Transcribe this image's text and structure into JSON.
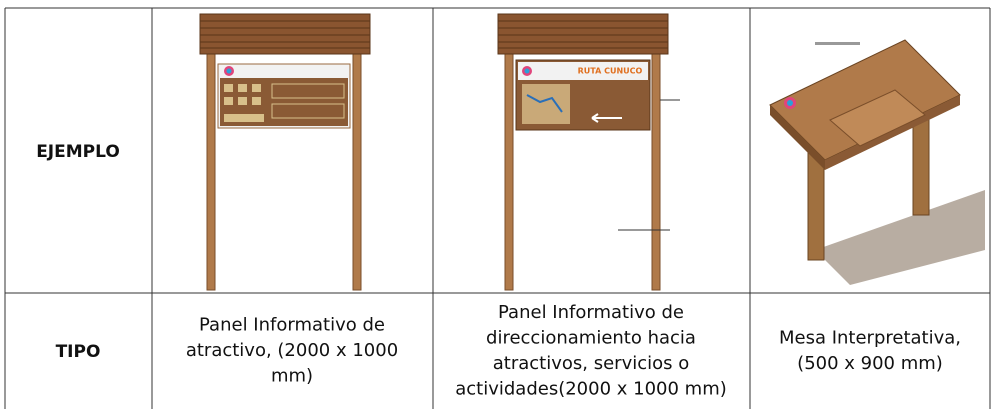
{
  "table": {
    "rows": [
      {
        "header": "EJEMPLO",
        "cells": [
          {
            "sign_title": null
          },
          {
            "sign_title": "RUTA CUNUCO"
          },
          {
            "sign_title": null
          }
        ]
      },
      {
        "header": "TIPO",
        "cells": [
          {
            "lines": [
              "Panel Informativo de",
              "atractivo, (2000 x 1000",
              "mm)"
            ]
          },
          {
            "lines": [
              "Panel Informativo de",
              "direccionamiento hacia",
              "atractivos, servicios o",
              "actividades(2000 x 1000 mm)"
            ]
          },
          {
            "lines": [
              "Mesa Interpretativa,",
              "(500 x 900 mm)"
            ]
          }
        ]
      }
    ]
  }
}
